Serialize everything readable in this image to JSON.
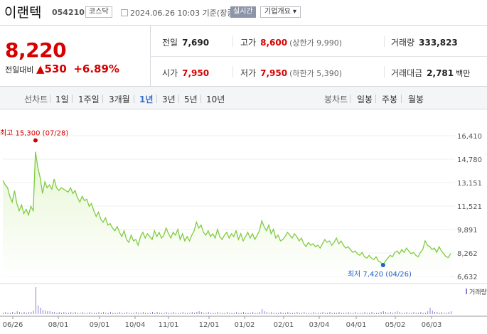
{
  "header": {
    "name": "이랜텍",
    "code": "054210",
    "market": "코스닥",
    "datetime": "2024.06.26 10:03 기준(장중)",
    "realtime": "실시간",
    "company_info": "기업개요 ▾"
  },
  "summary": {
    "price": "8,220",
    "change_label": "전일대비",
    "change_icon": "▲",
    "change_amount": "530",
    "change_pct": "+6.89%",
    "prev_label": "전일",
    "prev_value": "7,690",
    "high_label": "고가",
    "high_value": "8,600",
    "upper_limit": "(상한가 9,990)",
    "volume_label": "거래량",
    "volume_value": "333,823",
    "open_label": "시가",
    "open_value": "7,950",
    "low_label": "저가",
    "low_value": "7,950",
    "lower_limit": "(하한가 5,390)",
    "amount_label": "거래대금",
    "amount_value": "2,781",
    "amount_unit": "백만",
    "up_color": "#d60000"
  },
  "periods": {
    "line_label": "선차트",
    "line_options": [
      "1일",
      "1주일",
      "3개월",
      "1년",
      "3년",
      "5년",
      "10년"
    ],
    "active": "1년",
    "candle_label": "봉차트",
    "candle_options": [
      "일봉",
      "주봉",
      "월봉"
    ]
  },
  "chart_data": {
    "type": "area",
    "ylim": [
      6632,
      16410
    ],
    "y_ticks": [
      "16,410",
      "14,780",
      "13,151",
      "11,521",
      "9,891",
      "8,262",
      "6,632"
    ],
    "x_ticks": [
      "06/26",
      "08/01",
      "09/01",
      "10/04",
      "11/01",
      "12/01",
      "01/02",
      "02/01",
      "03/04",
      "04/01",
      "05/02",
      "06/03"
    ],
    "high_label": "최고 15,300 (07/28)",
    "low_label": "최저 7,420 (04/26)",
    "volume_legend": "거래량",
    "line_color": "#7fcc3f",
    "fill_color": "#e6f6d3",
    "series": [
      {
        "values": [
          13300,
          13000,
          12800,
          12200,
          11800,
          12600,
          11700,
          11200,
          11600,
          11000,
          11300,
          10900,
          11500,
          11200,
          15300,
          14200,
          13500,
          12400,
          13200,
          12800,
          13000,
          12700,
          13400,
          12800,
          12600,
          12800,
          12700,
          12600,
          12500,
          12800,
          12400,
          12600,
          12100,
          11800,
          12200,
          11900,
          12000,
          11500,
          11700,
          11200,
          10800,
          11100,
          10600,
          10400,
          10700,
          10200,
          10300,
          10000,
          9800,
          10100,
          9700,
          9400,
          9800,
          9200,
          9000,
          9500,
          9100,
          9200,
          8800,
          9400,
          9700,
          9300,
          9600,
          9400,
          9200,
          9800,
          9400,
          9700,
          9300,
          9500,
          10000,
          9600,
          9300,
          9700,
          9500,
          9900,
          9200,
          9600,
          9100,
          9400,
          9100,
          9500,
          9800,
          10400,
          10000,
          10200,
          9700,
          9500,
          9800,
          9400,
          9600,
          9300,
          9900,
          9400,
          9200,
          9500,
          9700,
          9300,
          9600,
          9400,
          9800,
          9200,
          9600,
          9100,
          9400,
          9700,
          9300,
          9600,
          9200,
          9500,
          9800,
          10500,
          10100,
          9800,
          10200,
          9600,
          9900,
          9300,
          9500,
          9100,
          9200,
          9400,
          9700,
          9500,
          9300,
          9600,
          9400,
          9100,
          9300,
          8900,
          8700,
          9000,
          8800,
          8900,
          8700,
          8800,
          8600,
          8900,
          9200,
          9000,
          9100,
          8800,
          9000,
          9300,
          8900,
          9100,
          8800,
          8600,
          8700,
          8500,
          8300,
          8400,
          8200,
          8100,
          8300,
          8000,
          7900,
          8100,
          7900,
          7800,
          8000,
          7700,
          7600,
          7420,
          7700,
          7900,
          8100,
          8000,
          8300,
          8400,
          8200,
          8500,
          8300,
          8600,
          8400,
          8200,
          8300,
          8100,
          8000,
          8300,
          8500,
          9100,
          8800,
          8700,
          8500,
          8600,
          8300,
          8700,
          8400,
          8200,
          8000,
          7950,
          8220
        ]
      }
    ]
  }
}
